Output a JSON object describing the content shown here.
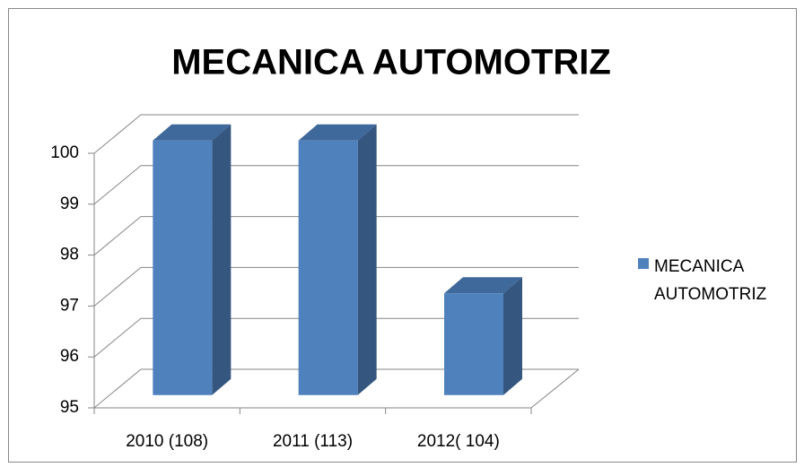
{
  "chart_data": {
    "type": "bar3d",
    "title": "MECANICA AUTOMOTRIZ",
    "categories": [
      "2010 (108)",
      "2011 (113)",
      "2012( 104)"
    ],
    "series": [
      {
        "name": "MECANICA AUTOMOTRIZ",
        "color": "#4f81bd",
        "values": [
          100,
          100,
          97
        ]
      }
    ],
    "ylim": [
      95,
      100
    ],
    "yticks": [
      95,
      96,
      97,
      98,
      99,
      100
    ],
    "grid": true,
    "legend": "right"
  }
}
